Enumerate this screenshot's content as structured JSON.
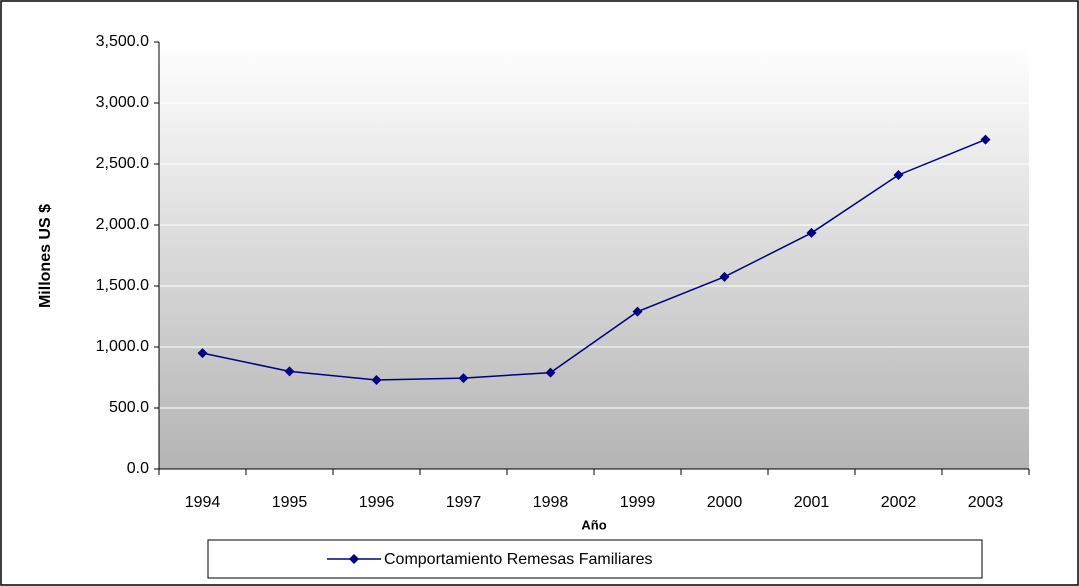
{
  "chart_data": {
    "type": "line",
    "categories": [
      "1994",
      "1995",
      "1996",
      "1997",
      "1998",
      "1999",
      "2000",
      "2001",
      "2002",
      "2003"
    ],
    "series": [
      {
        "name": "Comportamiento Remesas Familiares",
        "color": "#000080",
        "values": [
          950,
          800,
          730,
          745,
          790,
          1290,
          1575,
          1935,
          2410,
          2700
        ]
      }
    ],
    "y_label": "Millones US $",
    "x_label": "Año",
    "ylim": [
      0,
      3500
    ],
    "yticks": [
      {
        "value": 0,
        "label": "0.0"
      },
      {
        "value": 500,
        "label": "500.0"
      },
      {
        "value": 1000,
        "label": "1,000.0"
      },
      {
        "value": 1500,
        "label": "1,500.0"
      },
      {
        "value": 2000,
        "label": "2,000.0"
      },
      {
        "value": 2500,
        "label": "2,500.0"
      },
      {
        "value": 3000,
        "label": "3,000.0"
      },
      {
        "value": 3500,
        "label": "3,500.0"
      }
    ],
    "grid": true
  }
}
